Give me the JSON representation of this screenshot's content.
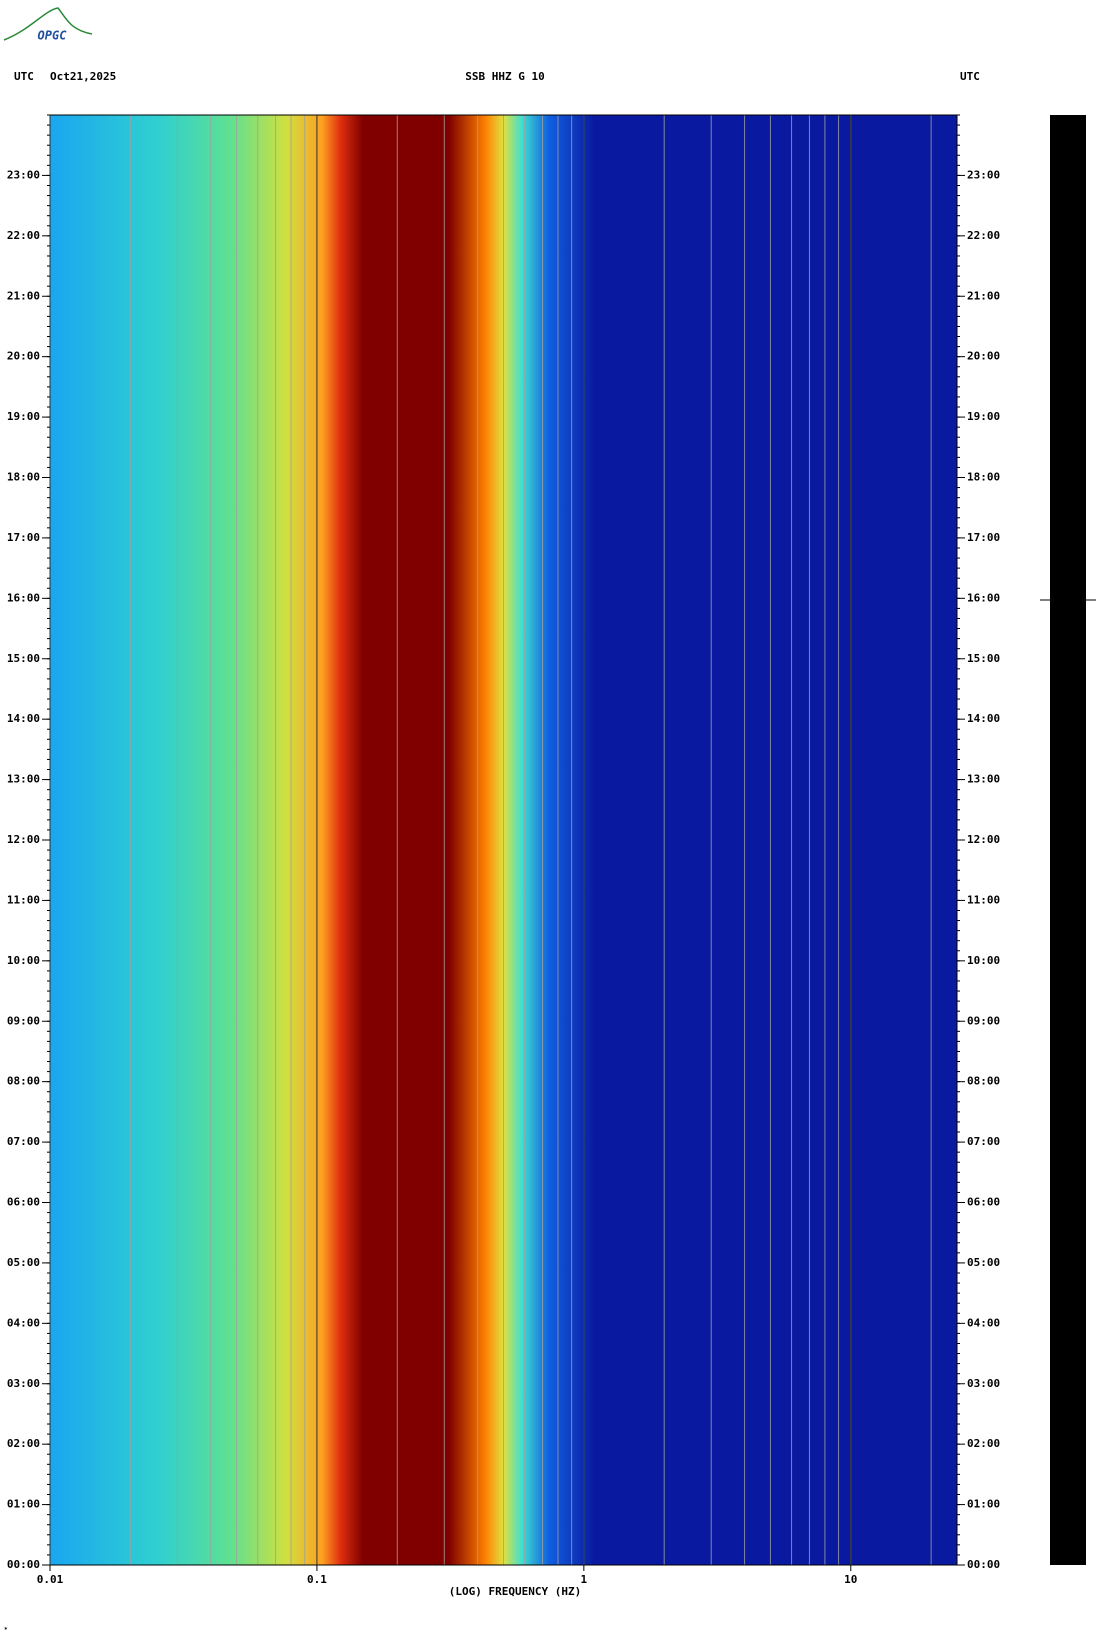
{
  "chart_data": {
    "type": "spectrogram",
    "logo": "OPGC",
    "timezone": "UTC",
    "date": "Oct21,2025",
    "title": "SSB HHZ G 10",
    "xlabel": "(LOG) FREQUENCY (HZ)",
    "xscale": "log",
    "xlim": [
      0.01,
      25
    ],
    "xticks": [
      0.01,
      0.1,
      1,
      10
    ],
    "ylim": [
      0,
      24
    ],
    "yticks": [
      {
        "value": 0,
        "label": "00:00"
      },
      {
        "value": 1,
        "label": "01:00"
      },
      {
        "value": 2,
        "label": "02:00"
      },
      {
        "value": 3,
        "label": "03:00"
      },
      {
        "value": 4,
        "label": "04:00"
      },
      {
        "value": 5,
        "label": "05:00"
      },
      {
        "value": 6,
        "label": "06:00"
      },
      {
        "value": 7,
        "label": "07:00"
      },
      {
        "value": 8,
        "label": "08:00"
      },
      {
        "value": 9,
        "label": "09:00"
      },
      {
        "value": 10,
        "label": "10:00"
      },
      {
        "value": 11,
        "label": "11:00"
      },
      {
        "value": 12,
        "label": "12:00"
      },
      {
        "value": 13,
        "label": "13:00"
      },
      {
        "value": 14,
        "label": "14:00"
      },
      {
        "value": 15,
        "label": "15:00"
      },
      {
        "value": 16,
        "label": "16:00"
      },
      {
        "value": 17,
        "label": "17:00"
      },
      {
        "value": 18,
        "label": "18:00"
      },
      {
        "value": 19,
        "label": "19:00"
      },
      {
        "value": 20,
        "label": "20:00"
      },
      {
        "value": 21,
        "label": "21:00"
      },
      {
        "value": 22,
        "label": "22:00"
      },
      {
        "value": 23,
        "label": "23:00"
      }
    ]
  }
}
